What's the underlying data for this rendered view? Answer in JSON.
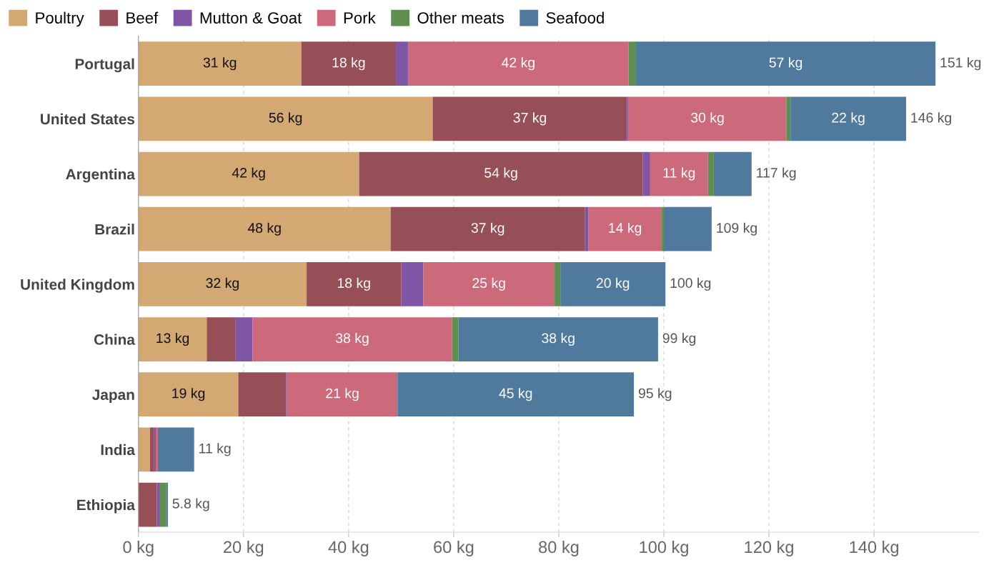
{
  "chart_data": {
    "type": "bar",
    "orientation": "horizontal",
    "stacked": true,
    "categories": [
      "Portugal",
      "United States",
      "Argentina",
      "Brazil",
      "United Kingdom",
      "China",
      "Japan",
      "India",
      "Ethiopia"
    ],
    "series": [
      {
        "name": "Poultry",
        "color": "#d4a872",
        "values": [
          31,
          56,
          42,
          48,
          32,
          13,
          19,
          2.2,
          null
        ],
        "value_labels": [
          "31 kg",
          "56 kg",
          "42 kg",
          "48 kg",
          "32 kg",
          "13 kg",
          "19 kg",
          null,
          null
        ]
      },
      {
        "name": "Beef",
        "color": "#964f57",
        "values": [
          18,
          37,
          54,
          37,
          18,
          5.5,
          9.1,
          0.8,
          3.5
        ],
        "value_labels": [
          "18 kg",
          "37 kg",
          "54 kg",
          "37 kg",
          "18 kg",
          null,
          null,
          null,
          null
        ]
      },
      {
        "name": "Mutton & Goat",
        "color": "#7f56a6",
        "values": [
          2.3,
          0.3,
          1.4,
          0.6,
          4.2,
          3.2,
          0.2,
          0.3,
          0.6
        ],
        "value_labels": [
          null,
          null,
          null,
          null,
          null,
          null,
          null,
          null,
          null
        ]
      },
      {
        "name": "Pork",
        "color": "#cc6a7b",
        "values": [
          42,
          30,
          11,
          14,
          25,
          38,
          21,
          0.4,
          null
        ],
        "value_labels": [
          "42 kg",
          "30 kg",
          "11 kg",
          "14 kg",
          "25 kg",
          "38 kg",
          "21 kg",
          null,
          null
        ]
      },
      {
        "name": "Other meats",
        "color": "#5f8f4f",
        "values": [
          1.4,
          0.8,
          1.1,
          0.4,
          1.1,
          1.2,
          0,
          0,
          1.2
        ],
        "value_labels": [
          null,
          null,
          null,
          null,
          null,
          null,
          null,
          null,
          null
        ]
      },
      {
        "name": "Seafood",
        "color": "#4f7a9d",
        "values": [
          57,
          22,
          7.2,
          9.1,
          20,
          38,
          45,
          6.9,
          0.3
        ],
        "value_labels": [
          "57 kg",
          "22 kg",
          null,
          null,
          "20 kg",
          "38 kg",
          "45 kg",
          null,
          null
        ]
      }
    ],
    "totals": [
      "151 kg",
      "146 kg",
      "117 kg",
      "109 kg",
      "100 kg",
      "99 kg",
      "95 kg",
      "11 kg",
      "5.8 kg"
    ],
    "xlim": [
      0,
      160
    ],
    "xticks": [
      {
        "value": 0,
        "label": "0 kg"
      },
      {
        "value": 20,
        "label": "20 kg"
      },
      {
        "value": 40,
        "label": "40 kg"
      },
      {
        "value": 60,
        "label": "60 kg"
      },
      {
        "value": 80,
        "label": "80 kg"
      },
      {
        "value": 100,
        "label": "100 kg"
      },
      {
        "value": 120,
        "label": "120 kg"
      },
      {
        "value": 140,
        "label": "140 kg"
      }
    ],
    "grid": "x",
    "legend": "top left"
  }
}
